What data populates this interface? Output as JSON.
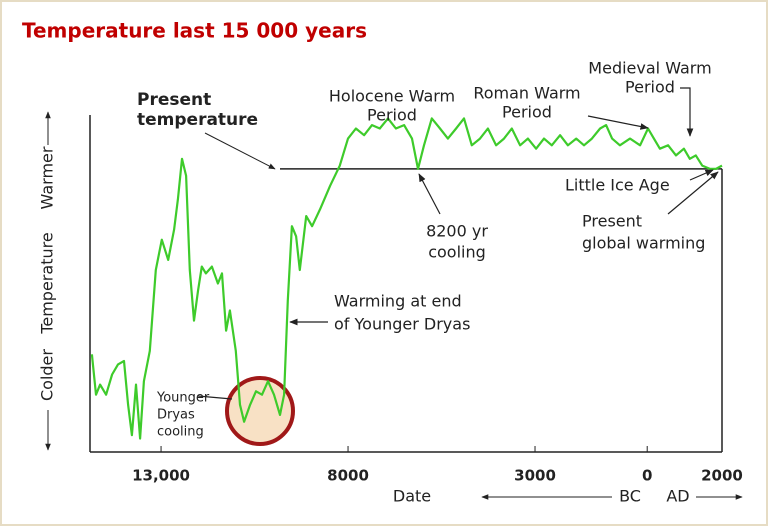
{
  "chart_data": {
    "type": "line",
    "title": "Temperature last 15 000 years",
    "x_label": "Date",
    "era_labels": [
      "BC",
      "AD"
    ],
    "y_labels": [
      "Colder",
      "Temperature",
      "Warmer"
    ],
    "color": "#3ecb2b",
    "xlim": [
      -14900,
      2000
    ],
    "ylim": [
      0,
      100
    ],
    "xticks": [
      {
        "value": -13000,
        "label": "13,000"
      },
      {
        "value": -8000,
        "label": "8000"
      },
      {
        "value": -3000,
        "label": "3000"
      },
      0,
      2000
    ],
    "x": [
      -14850,
      -14740,
      -14630,
      -14470,
      -14310,
      -14150,
      -13990,
      -13880,
      -13780,
      -13670,
      -13560,
      -13460,
      -13300,
      -13140,
      -12980,
      -12810,
      -12650,
      -12550,
      -12440,
      -12330,
      -12230,
      -12120,
      -12010,
      -11910,
      -11800,
      -11640,
      -11480,
      -11370,
      -11260,
      -11160,
      -11000,
      -10890,
      -10780,
      -10620,
      -10460,
      -10300,
      -10140,
      -9980,
      -9820,
      -9710,
      -9610,
      -9500,
      -9390,
      -9290,
      -9120,
      -8960,
      -8750,
      -8480,
      -8220,
      -8000,
      -7790,
      -7570,
      -7360,
      -7150,
      -6930,
      -6720,
      -6500,
      -6290,
      -6130,
      -5970,
      -5760,
      -5540,
      -5330,
      -5110,
      -4900,
      -4690,
      -4470,
      -4260,
      -4040,
      -3830,
      -3620,
      -3400,
      -3190,
      -2970,
      -2760,
      -2550,
      -2330,
      -2120,
      -1900,
      -1690,
      -1480,
      -1260,
      -1100,
      -940,
      -730,
      -460,
      -190,
      20,
      180,
      340,
      560,
      770,
      980,
      1140,
      1300,
      1470,
      1680,
      1840,
      2000
    ],
    "values": [
      29,
      17,
      20,
      17,
      23,
      26,
      27,
      14,
      5,
      20,
      4,
      21,
      30,
      54,
      63,
      57,
      66,
      75,
      87,
      82,
      54,
      39,
      48,
      55,
      53,
      55,
      50,
      53,
      36,
      42,
      30,
      14,
      9,
      14,
      18,
      17,
      21,
      17,
      11,
      17,
      45,
      67,
      64,
      54,
      70,
      67,
      72,
      79,
      85,
      93,
      96,
      94,
      97,
      96,
      99,
      96,
      97,
      93,
      84,
      91,
      99,
      96,
      93,
      96,
      99,
      91,
      93,
      96,
      91,
      93,
      96,
      91,
      93,
      90,
      93,
      91,
      94,
      91,
      93,
      91,
      93,
      96,
      97,
      93,
      91,
      93,
      91,
      96,
      93,
      90,
      91,
      88,
      90,
      87,
      88,
      85,
      84,
      84,
      85
    ],
    "present_temperature": {
      "value": 84,
      "lines": [
        "Present",
        "temperature"
      ]
    },
    "annotations": [
      {
        "lines": [
          "Holocene Warm",
          "Period"
        ]
      },
      {
        "lines": [
          "Roman Warm",
          "Period"
        ]
      },
      {
        "lines": [
          "Medieval Warm",
          "Period"
        ]
      },
      {
        "lines": [
          "Little Ice Age"
        ]
      },
      {
        "lines": [
          "8200 yr",
          "cooling"
        ]
      },
      {
        "lines": [
          "Present",
          "global warming"
        ]
      },
      {
        "lines": [
          "Warming at end",
          "of Younger Dryas"
        ]
      },
      {
        "lines": [
          "Younger",
          "Dryas",
          "cooling"
        ]
      }
    ]
  }
}
